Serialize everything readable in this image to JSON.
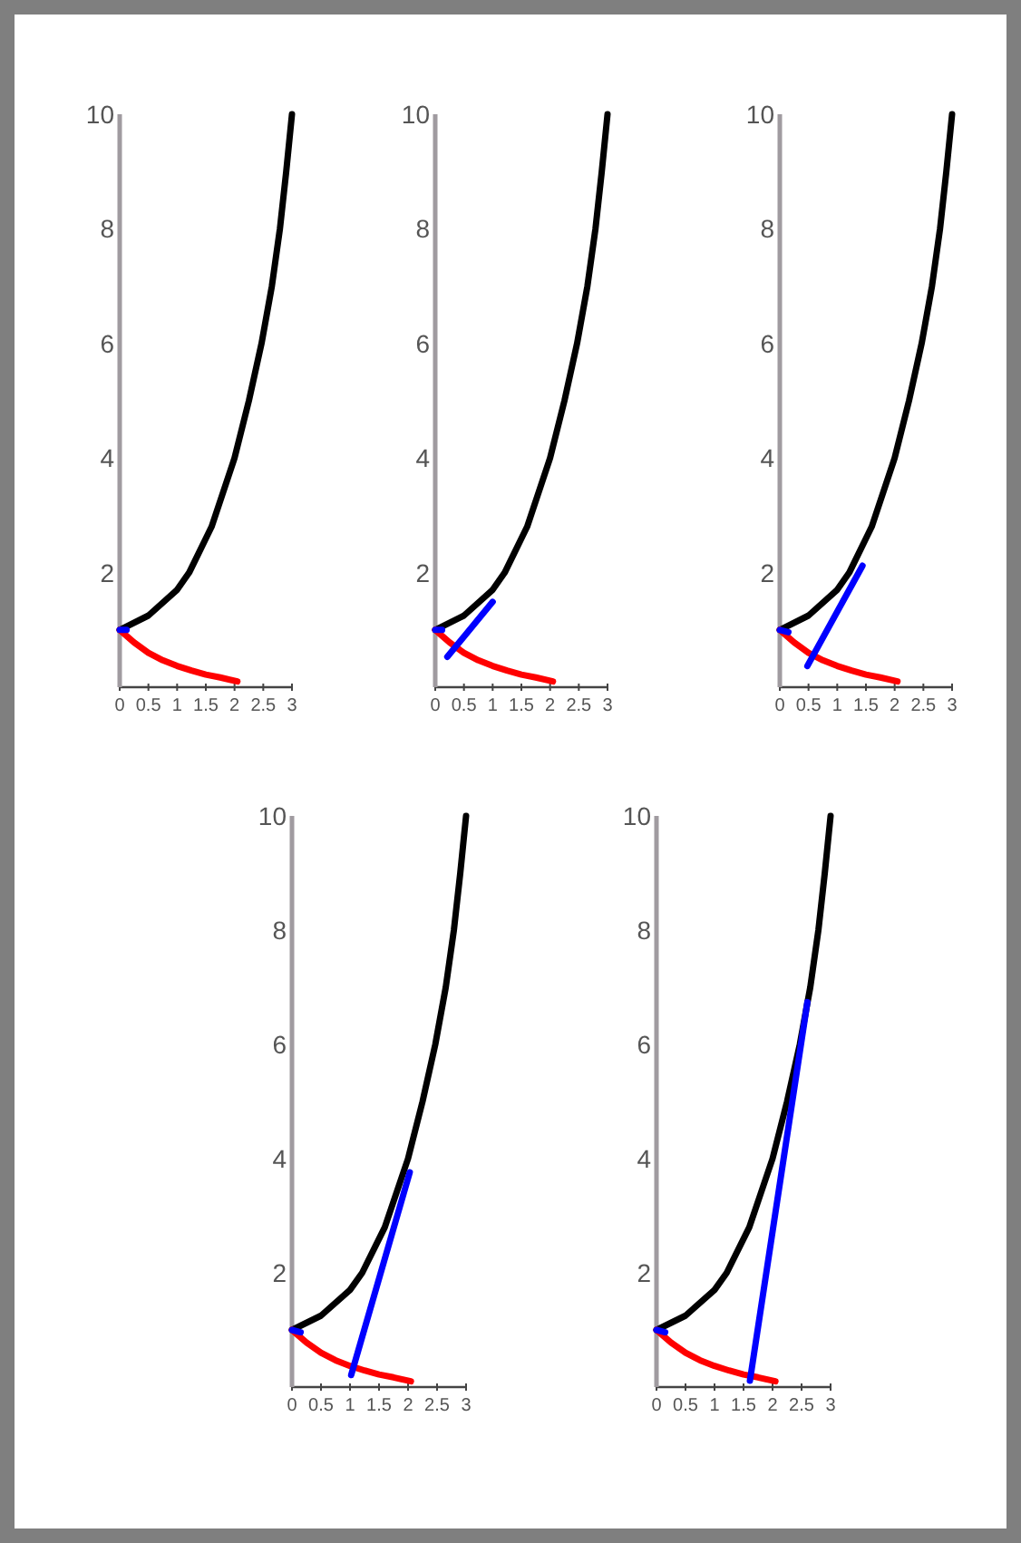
{
  "chart_data": [
    {
      "type": "line",
      "xlim": [
        0,
        3
      ],
      "ylim": [
        0,
        10
      ],
      "xticks": [
        0,
        0.5,
        1,
        1.5,
        2,
        2.5,
        3
      ],
      "yticks": [
        2,
        4,
        6,
        8,
        10
      ],
      "marker": "none",
      "series": [
        {
          "color": "#000000",
          "x": [
            0,
            0.5,
            1,
            1.21,
            1.6,
            2,
            2.25,
            2.47,
            2.65,
            2.79,
            2.9,
            3
          ],
          "values": [
            1,
            1.25,
            1.7,
            2,
            2.8,
            4,
            5,
            6,
            7,
            8,
            9,
            10
          ]
        },
        {
          "color": "#ff0000",
          "x": [
            0,
            0.25,
            0.5,
            0.75,
            1,
            1.25,
            1.5,
            1.75,
            2.05
          ],
          "values": [
            1,
            0.78,
            0.6,
            0.47,
            0.37,
            0.29,
            0.22,
            0.17,
            0.1
          ]
        },
        {
          "color": "#0000ff",
          "x": [
            0,
            0.12
          ],
          "values": [
            1,
            1
          ]
        }
      ]
    },
    {
      "type": "line",
      "xlim": [
        0,
        3
      ],
      "ylim": [
        0,
        10
      ],
      "xticks": [
        0,
        0.5,
        1,
        1.5,
        2,
        2.5,
        3
      ],
      "yticks": [
        2,
        4,
        6,
        8,
        10
      ],
      "marker": "none",
      "series": [
        {
          "color": "#000000",
          "x": [
            0,
            0.5,
            1,
            1.21,
            1.6,
            2,
            2.25,
            2.47,
            2.65,
            2.79,
            2.9,
            3
          ],
          "values": [
            1,
            1.25,
            1.7,
            2,
            2.8,
            4,
            5,
            6,
            7,
            8,
            9,
            10
          ]
        },
        {
          "color": "#ff0000",
          "x": [
            0,
            0.25,
            0.5,
            0.75,
            1,
            1.25,
            1.5,
            1.75,
            2.05
          ],
          "values": [
            1,
            0.78,
            0.6,
            0.47,
            0.37,
            0.29,
            0.22,
            0.17,
            0.1
          ]
        },
        {
          "color": "#0000ff",
          "x": [
            0.21,
            1.0
          ],
          "values": [
            0.53,
            1.49
          ]
        },
        {
          "color": "#0000ff",
          "x": [
            0,
            0.12
          ],
          "values": [
            1,
            1
          ]
        }
      ]
    },
    {
      "type": "line",
      "xlim": [
        0,
        3
      ],
      "ylim": [
        0,
        10
      ],
      "xticks": [
        0,
        0.5,
        1,
        1.5,
        2,
        2.5,
        3
      ],
      "yticks": [
        2,
        4,
        6,
        8,
        10
      ],
      "marker": "none",
      "series": [
        {
          "color": "#000000",
          "x": [
            0,
            0.5,
            1,
            1.21,
            1.6,
            2,
            2.25,
            2.47,
            2.65,
            2.79,
            2.9,
            3
          ],
          "values": [
            1,
            1.25,
            1.7,
            2,
            2.8,
            4,
            5,
            6,
            7,
            8,
            9,
            10
          ]
        },
        {
          "color": "#ff0000",
          "x": [
            0,
            0.25,
            0.5,
            0.75,
            1,
            1.25,
            1.5,
            1.75,
            2.05
          ],
          "values": [
            1,
            0.78,
            0.6,
            0.47,
            0.37,
            0.29,
            0.22,
            0.17,
            0.1
          ]
        },
        {
          "color": "#0000ff",
          "x": [
            0.48,
            1.44
          ],
          "values": [
            0.37,
            2.12
          ]
        },
        {
          "color": "#0000ff",
          "x": [
            0,
            0.15
          ],
          "values": [
            1,
            0.96
          ]
        }
      ]
    },
    {
      "type": "line",
      "xlim": [
        0,
        3
      ],
      "ylim": [
        0,
        10
      ],
      "xticks": [
        0,
        0.5,
        1,
        1.5,
        2,
        2.5,
        3
      ],
      "yticks": [
        2,
        4,
        6,
        8,
        10
      ],
      "marker": "none",
      "series": [
        {
          "color": "#000000",
          "x": [
            0,
            0.5,
            1,
            1.21,
            1.6,
            2,
            2.25,
            2.47,
            2.65,
            2.79,
            2.9,
            3
          ],
          "values": [
            1,
            1.25,
            1.7,
            2,
            2.8,
            4,
            5,
            6,
            7,
            8,
            9,
            10
          ]
        },
        {
          "color": "#ff0000",
          "x": [
            0,
            0.25,
            0.5,
            0.75,
            1,
            1.25,
            1.5,
            1.75,
            2.05
          ],
          "values": [
            1,
            0.78,
            0.6,
            0.47,
            0.37,
            0.29,
            0.22,
            0.17,
            0.1
          ]
        },
        {
          "color": "#0000ff",
          "x": [
            1.02,
            2.03
          ],
          "values": [
            0.21,
            3.76
          ]
        },
        {
          "color": "#0000ff",
          "x": [
            0,
            0.15
          ],
          "values": [
            1,
            0.96
          ]
        }
      ]
    },
    {
      "type": "line",
      "xlim": [
        0,
        3
      ],
      "ylim": [
        0,
        10
      ],
      "xticks": [
        0,
        0.5,
        1,
        1.5,
        2,
        2.5,
        3
      ],
      "yticks": [
        2,
        4,
        6,
        8,
        10
      ],
      "marker": "none",
      "series": [
        {
          "color": "#000000",
          "x": [
            0,
            0.5,
            1,
            1.21,
            1.6,
            2,
            2.25,
            2.47,
            2.65,
            2.79,
            2.9,
            3
          ],
          "values": [
            1,
            1.25,
            1.7,
            2,
            2.8,
            4,
            5,
            6,
            7,
            8,
            9,
            10
          ]
        },
        {
          "color": "#ff0000",
          "x": [
            0,
            0.25,
            0.5,
            0.75,
            1,
            1.25,
            1.5,
            1.75,
            2.05
          ],
          "values": [
            1,
            0.78,
            0.6,
            0.47,
            0.37,
            0.29,
            0.22,
            0.17,
            0.1
          ]
        },
        {
          "color": "#0000ff",
          "x": [
            1.61,
            2.6
          ],
          "values": [
            0.11,
            6.74
          ]
        },
        {
          "color": "#0000ff",
          "x": [
            0,
            0.15
          ],
          "values": [
            1,
            0.96
          ]
        }
      ]
    }
  ]
}
